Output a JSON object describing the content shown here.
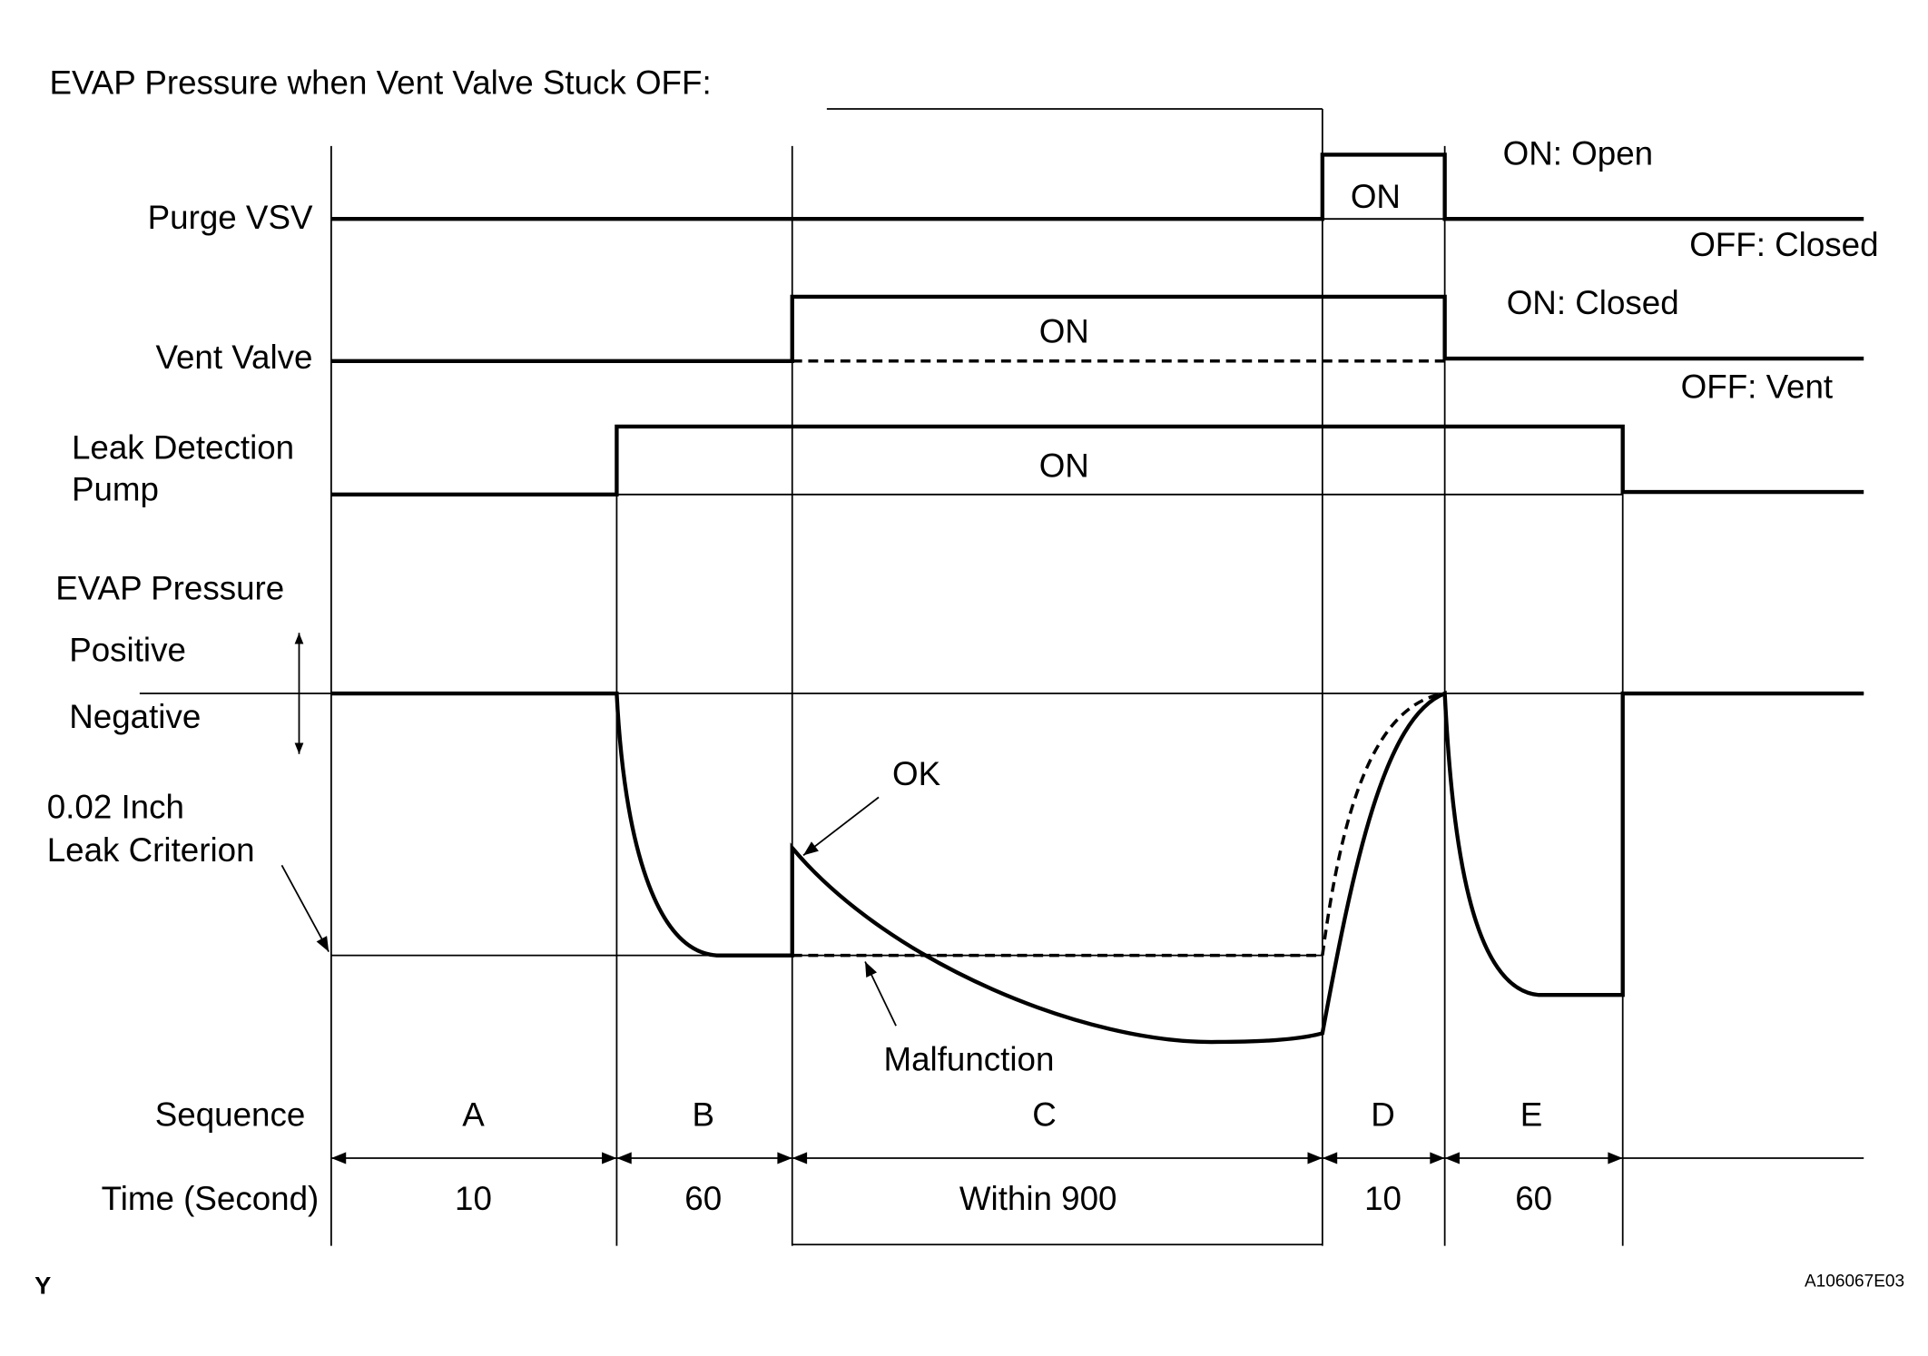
{
  "title": "EVAP Pressure when Vent Valve Stuck OFF:",
  "signals": [
    {
      "label": "Purge VSV",
      "on_label": "ON",
      "on_state": "ON: Open",
      "off_state": "OFF: Closed"
    },
    {
      "label": "Vent Valve",
      "on_label": "ON",
      "on_state": "ON: Closed",
      "off_state": "OFF: Vent"
    },
    {
      "label_lines": [
        "Leak Detection",
        "Pump"
      ],
      "on_label": "ON"
    }
  ],
  "pressure": {
    "label": "EVAP Pressure",
    "positive": "Positive",
    "negative": "Negative",
    "criterion_lines": [
      "0.02 Inch",
      "Leak Criterion"
    ],
    "ok": "OK",
    "malfunction": "Malfunction"
  },
  "sequence": {
    "label": "Sequence",
    "time_label": "Time (Second)",
    "phases": [
      {
        "name": "A",
        "time": "10"
      },
      {
        "name": "B",
        "time": "60"
      },
      {
        "name": "C",
        "time": "Within 900"
      },
      {
        "name": "D",
        "time": "10"
      },
      {
        "name": "E",
        "time": "60"
      }
    ]
  },
  "corner_mark": "Y",
  "figure_id": "A106067E03"
}
